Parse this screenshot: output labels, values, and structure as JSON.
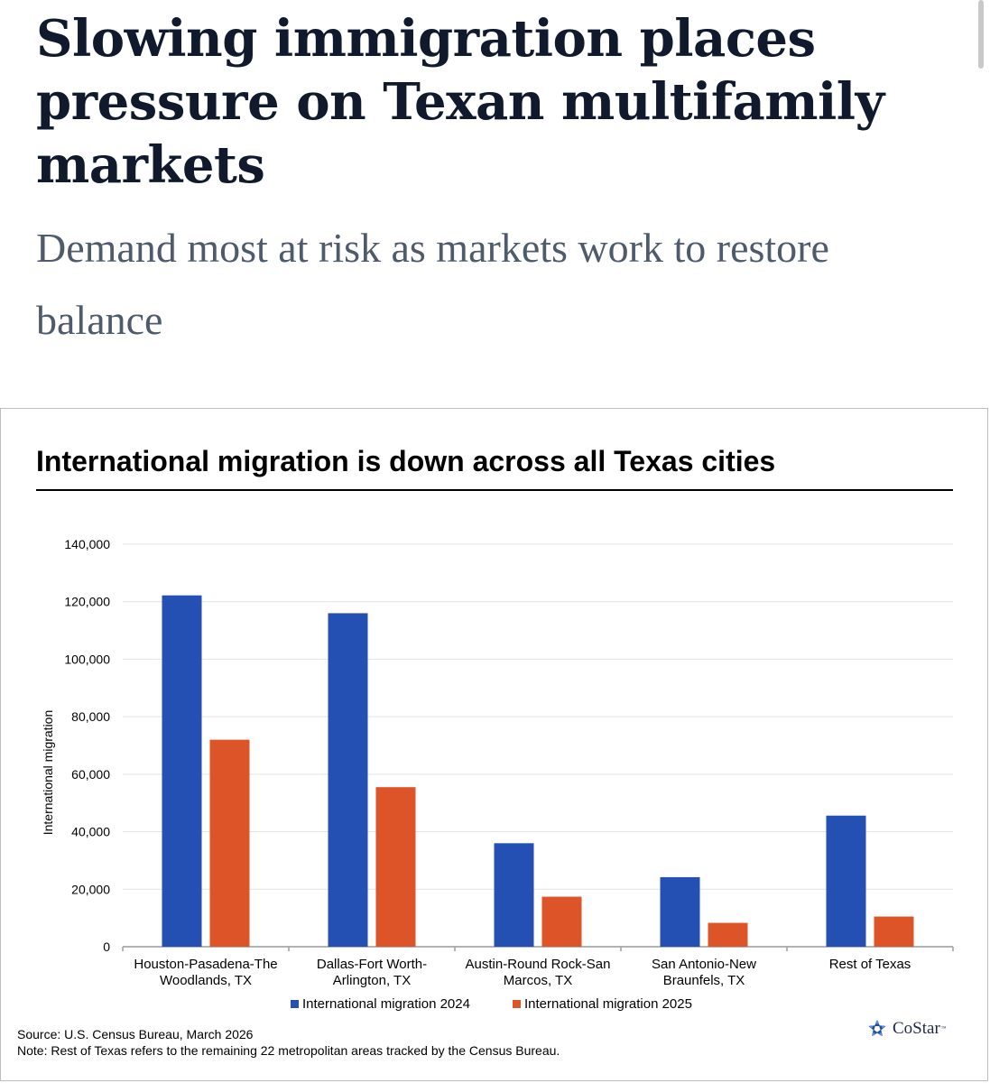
{
  "article": {
    "headline": "Slowing immigration places pressure on Texan multifamily markets",
    "subheadline": "Demand most at risk as markets work to restore balance"
  },
  "chart_data": {
    "type": "bar",
    "title": "International migration is down across all Texas cities",
    "xlabel": "",
    "ylabel": "International migration",
    "ylim": [
      0,
      140000
    ],
    "yticks": [
      0,
      20000,
      40000,
      60000,
      80000,
      100000,
      120000,
      140000
    ],
    "ytick_labels": [
      "0",
      "20,000",
      "40,000",
      "60,000",
      "80,000",
      "100,000",
      "120,000",
      "140,000"
    ],
    "categories": [
      [
        "Houston-Pasadena-The",
        "Woodlands, TX"
      ],
      [
        "Dallas-Fort Worth-",
        "Arlington, TX"
      ],
      [
        "Austin-Round Rock-San",
        "Marcos, TX"
      ],
      [
        "San Antonio-New",
        "Braunfels, TX"
      ],
      [
        "Rest of Texas"
      ]
    ],
    "series": [
      {
        "name": "International migration 2024",
        "color": "#2450b4",
        "values": [
          122200,
          116000,
          36000,
          24200,
          45600
        ]
      },
      {
        "name": "International migration 2025",
        "color": "#dc5428",
        "values": [
          72000,
          55500,
          17400,
          8300,
          10500
        ]
      }
    ],
    "legend": "bottom",
    "grid": true
  },
  "footer": {
    "source": "Source: U.S. Census Bureau, March 2026",
    "note": "Note: Rest of Texas refers to the remaining 22 metropolitan areas tracked by the Census Bureau.",
    "logo_text": "CoStar",
    "logo_tm": "™"
  },
  "colors": {
    "headline": "#101a2c",
    "subheadline": "#4f5a6b",
    "grid": "#e3e3e3",
    "axis": "#9a9a9a"
  }
}
